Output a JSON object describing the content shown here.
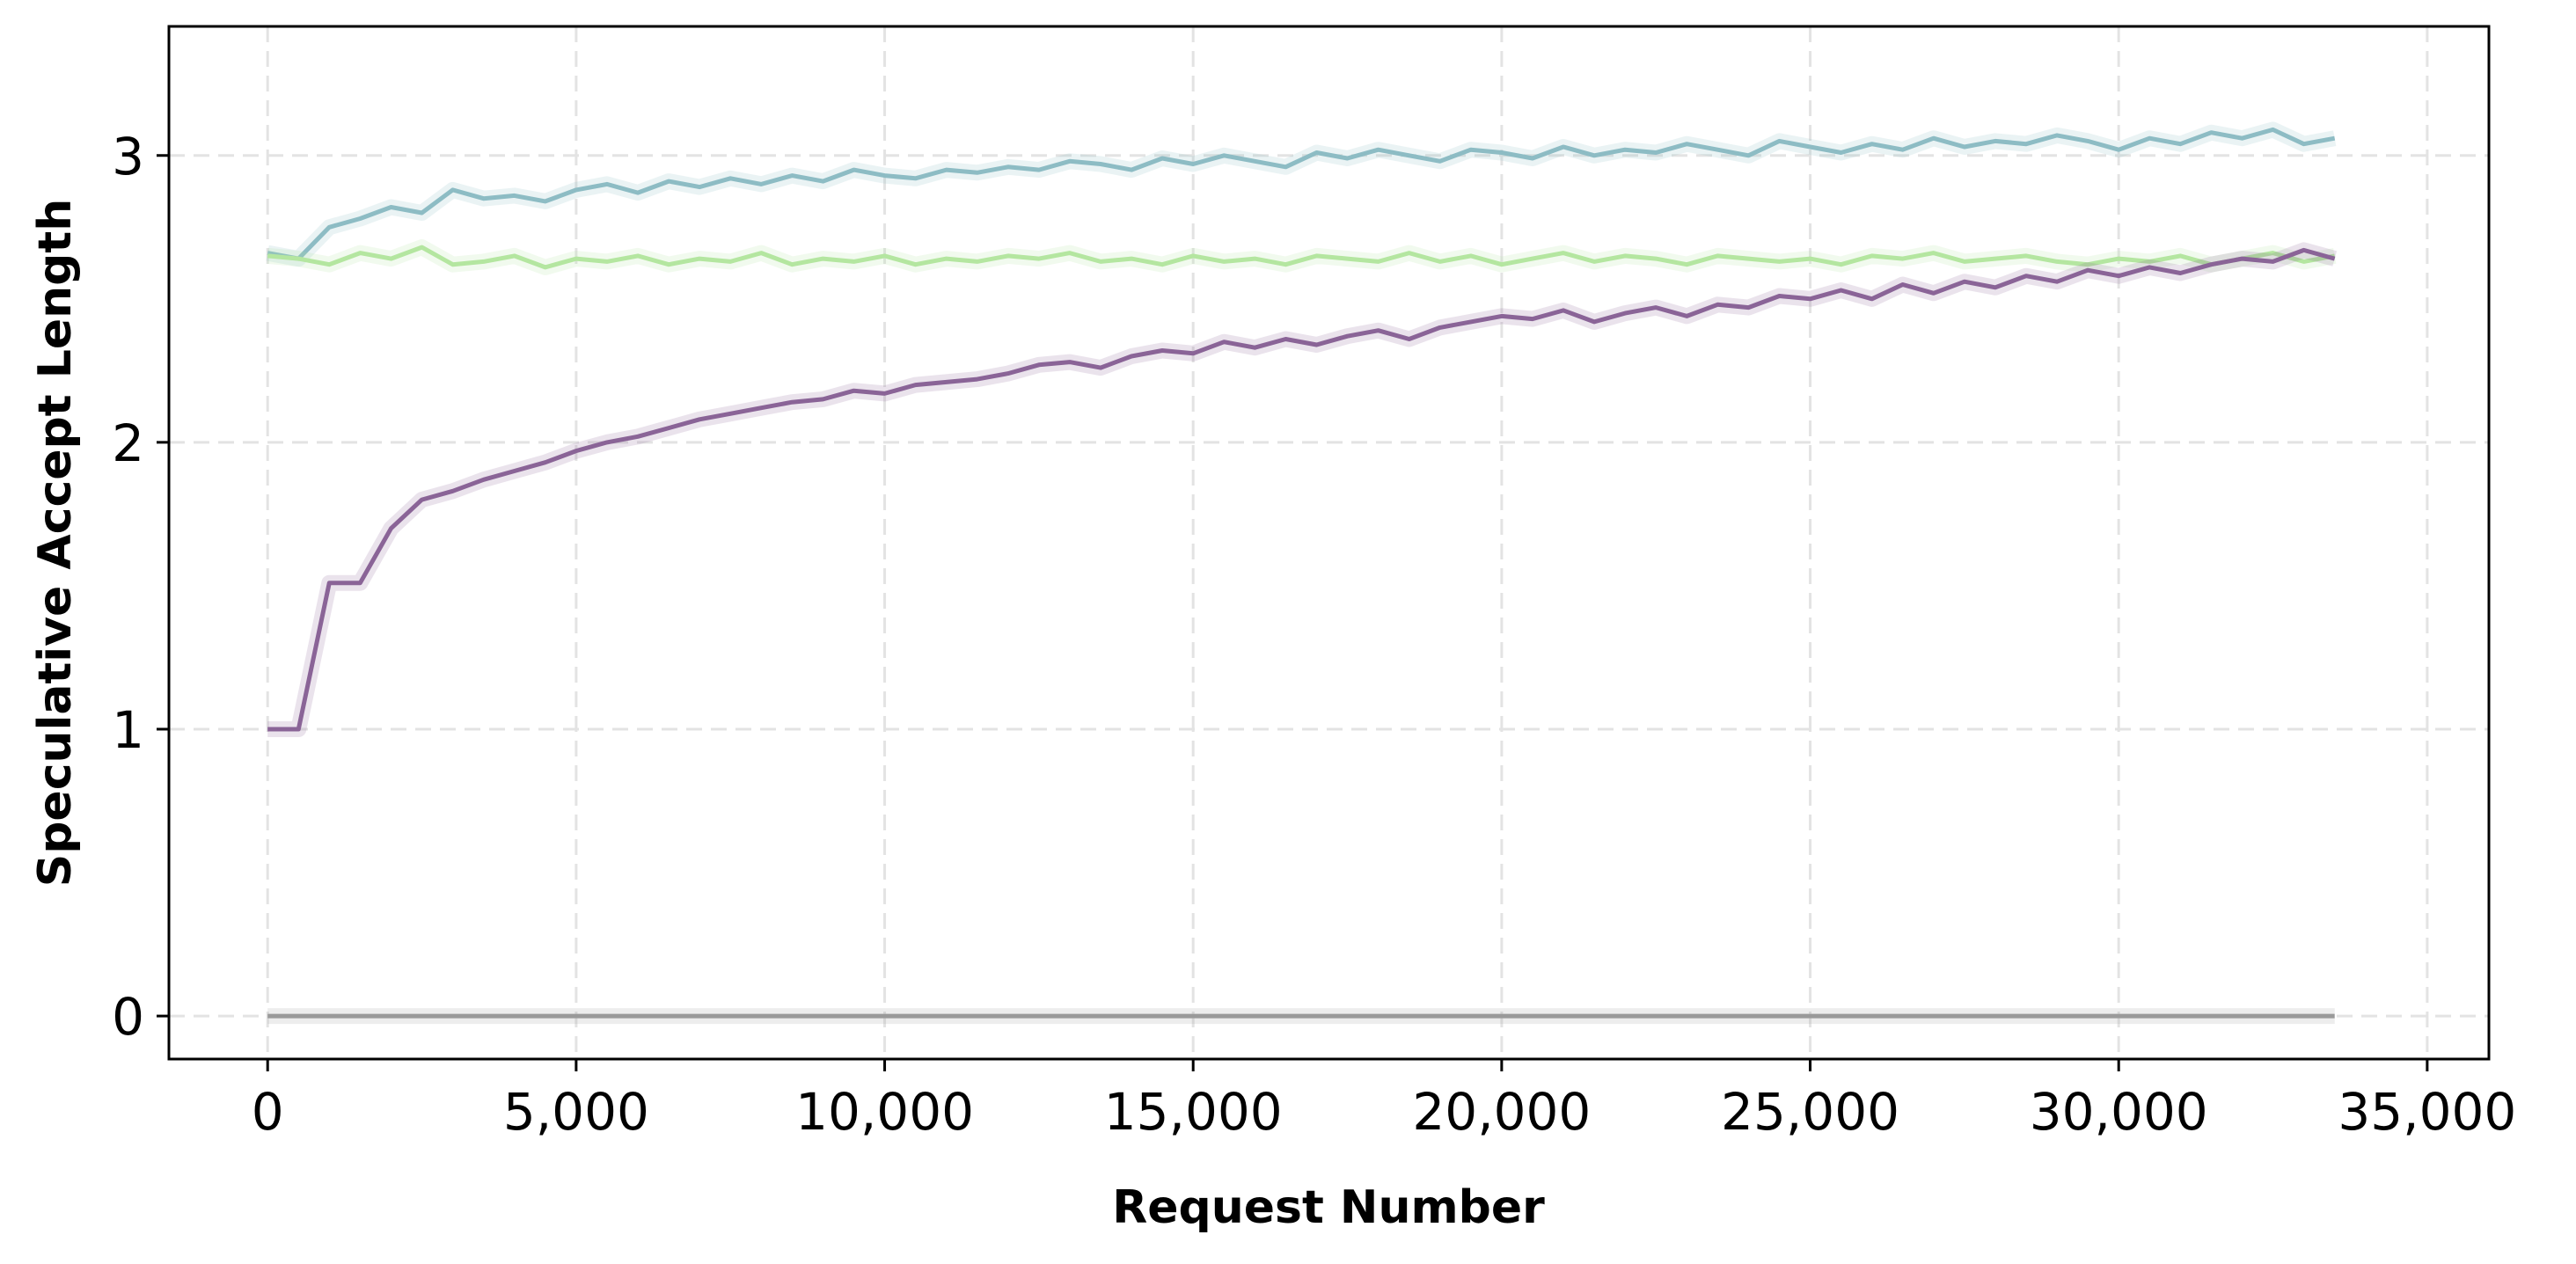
{
  "chart_data": {
    "type": "line",
    "title": "",
    "xlabel": "Request Number",
    "ylabel": "Speculative Accept Length",
    "xlim": [
      -1600,
      36000
    ],
    "ylim": [
      -0.15,
      3.45
    ],
    "xticks": [
      0,
      5000,
      10000,
      15000,
      20000,
      25000,
      30000,
      35000
    ],
    "xtick_labels": [
      "0",
      "5,000",
      "10,000",
      "15,000",
      "20,000",
      "25,000",
      "30,000",
      "35,000"
    ],
    "yticks": [
      0,
      1,
      2,
      3
    ],
    "ytick_labels": [
      "0",
      "1",
      "2",
      "3"
    ],
    "grid": true,
    "x": [
      0,
      500,
      1000,
      1500,
      2000,
      2500,
      3000,
      3500,
      4000,
      4500,
      5000,
      5500,
      6000,
      6500,
      7000,
      7500,
      8000,
      8500,
      9000,
      9500,
      10000,
      10500,
      11000,
      11500,
      12000,
      12500,
      13000,
      13500,
      14000,
      14500,
      15000,
      15500,
      16000,
      16500,
      17000,
      17500,
      18000,
      18500,
      19000,
      19500,
      20000,
      20500,
      21000,
      21500,
      22000,
      22500,
      23000,
      23500,
      24000,
      24500,
      25000,
      25500,
      26000,
      26500,
      27000,
      27500,
      28000,
      28500,
      29000,
      29500,
      30000,
      30500,
      31000,
      31500,
      32000,
      32500,
      33000,
      33500
    ],
    "series": [
      {
        "color": "#8dbcc4",
        "values": [
          2.66,
          2.64,
          2.75,
          2.78,
          2.82,
          2.8,
          2.88,
          2.85,
          2.86,
          2.84,
          2.88,
          2.9,
          2.87,
          2.91,
          2.89,
          2.92,
          2.9,
          2.93,
          2.91,
          2.95,
          2.93,
          2.92,
          2.95,
          2.94,
          2.96,
          2.95,
          2.98,
          2.97,
          2.95,
          2.99,
          2.97,
          3.0,
          2.98,
          2.96,
          3.01,
          2.99,
          3.02,
          3.0,
          2.98,
          3.02,
          3.01,
          2.99,
          3.03,
          3.0,
          3.02,
          3.01,
          3.04,
          3.02,
          3.0,
          3.05,
          3.03,
          3.01,
          3.04,
          3.02,
          3.06,
          3.03,
          3.05,
          3.04,
          3.07,
          3.05,
          3.02,
          3.06,
          3.04,
          3.08,
          3.06,
          3.09,
          3.04,
          3.06
        ]
      },
      {
        "color": "#b4e6a0",
        "values": [
          2.65,
          2.64,
          2.62,
          2.66,
          2.64,
          2.68,
          2.62,
          2.63,
          2.65,
          2.61,
          2.64,
          2.63,
          2.65,
          2.62,
          2.64,
          2.63,
          2.66,
          2.62,
          2.64,
          2.63,
          2.65,
          2.62,
          2.64,
          2.63,
          2.65,
          2.64,
          2.66,
          2.63,
          2.64,
          2.62,
          2.65,
          2.63,
          2.64,
          2.62,
          2.65,
          2.64,
          2.63,
          2.66,
          2.63,
          2.65,
          2.62,
          2.64,
          2.66,
          2.63,
          2.65,
          2.64,
          2.62,
          2.65,
          2.64,
          2.63,
          2.64,
          2.62,
          2.65,
          2.64,
          2.66,
          2.63,
          2.64,
          2.65,
          2.63,
          2.62,
          2.64,
          2.63,
          2.65,
          2.62,
          2.64,
          2.66,
          2.63,
          2.65
        ]
      },
      {
        "color": "#8a6497",
        "values": [
          1.0,
          1.0,
          1.51,
          1.51,
          1.7,
          1.8,
          1.83,
          1.87,
          1.9,
          1.93,
          1.97,
          2.0,
          2.02,
          2.05,
          2.08,
          2.1,
          2.12,
          2.14,
          2.15,
          2.18,
          2.17,
          2.2,
          2.21,
          2.22,
          2.24,
          2.27,
          2.28,
          2.26,
          2.3,
          2.32,
          2.31,
          2.35,
          2.33,
          2.36,
          2.34,
          2.37,
          2.39,
          2.36,
          2.4,
          2.42,
          2.44,
          2.43,
          2.46,
          2.42,
          2.45,
          2.47,
          2.44,
          2.48,
          2.47,
          2.51,
          2.5,
          2.53,
          2.5,
          2.55,
          2.52,
          2.56,
          2.54,
          2.58,
          2.56,
          2.6,
          2.58,
          2.61,
          2.59,
          2.62,
          2.64,
          2.63,
          2.67,
          2.64
        ]
      },
      {
        "color": "#9a9a9a",
        "values": [
          0,
          0,
          0,
          0,
          0,
          0,
          0,
          0,
          0,
          0,
          0,
          0,
          0,
          0,
          0,
          0,
          0,
          0,
          0,
          0,
          0,
          0,
          0,
          0,
          0,
          0,
          0,
          0,
          0,
          0,
          0,
          0,
          0,
          0,
          0,
          0,
          0,
          0,
          0,
          0,
          0,
          0,
          0,
          0,
          0,
          0,
          0,
          0,
          0,
          0,
          0,
          0,
          0,
          0,
          0,
          0,
          0,
          0,
          0,
          0,
          0,
          0,
          0,
          0,
          0,
          0,
          0,
          0
        ]
      }
    ]
  }
}
